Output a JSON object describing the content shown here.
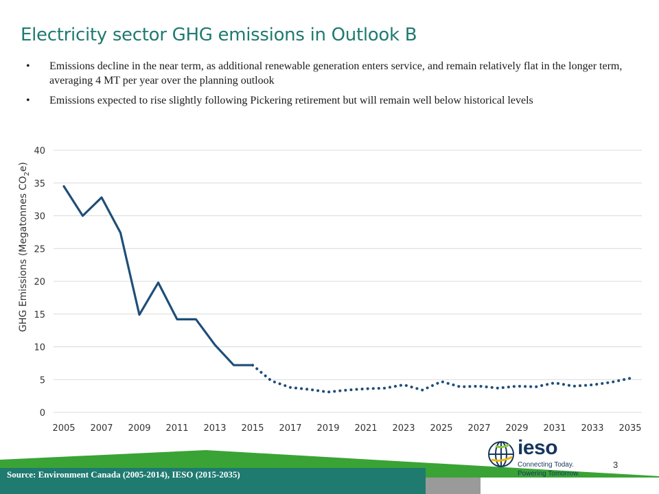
{
  "slide": {
    "title": "Electricity sector GHG emissions in Outlook B",
    "bullets": [
      "Emissions decline in the near term, as additional renewable generation enters service, and remain relatively flat in the longer term, averaging 4 MT per year over the planning outlook",
      "Emissions expected to rise slightly following Pickering retirement but will remain well below historical levels"
    ],
    "source": "Source: Environment Canada (2005-2014), IESO (2015-2035)",
    "page_number": "3"
  },
  "logo": {
    "wordmark": "ieso",
    "tagline_1": "Connecting Today.",
    "tagline_2": "Powering Tomorrow."
  },
  "colors": {
    "title": "#1f7a70",
    "series": "#1f4e79",
    "grid": "#d9d9d9",
    "footer_green": "#3aa335",
    "footer_teal": "#1f7a70",
    "logo_navy": "#16365e"
  },
  "chart_data": {
    "type": "line",
    "title": "",
    "xlabel": "",
    "ylabel": "GHG Emissions (Megatonnes CO2e)",
    "ylim": [
      0,
      40
    ],
    "yticks": [
      0,
      5,
      10,
      15,
      20,
      25,
      30,
      35,
      40
    ],
    "xlim": [
      2005,
      2035
    ],
    "xticks": [
      2005,
      2007,
      2009,
      2011,
      2013,
      2015,
      2017,
      2019,
      2021,
      2023,
      2025,
      2027,
      2029,
      2031,
      2033,
      2035
    ],
    "grid": true,
    "legend": "none",
    "series": [
      {
        "style": "solid",
        "x": [
          2005,
          2006,
          2007,
          2008,
          2009,
          2010,
          2011,
          2012,
          2013,
          2014,
          2015
        ],
        "y": [
          34.5,
          30.0,
          32.8,
          27.4,
          14.9,
          19.8,
          14.2,
          14.2,
          10.3,
          7.2,
          7.2
        ]
      },
      {
        "style": "dotted",
        "x": [
          2015,
          2016,
          2017,
          2018,
          2019,
          2020,
          2021,
          2022,
          2023,
          2024,
          2025,
          2026,
          2027,
          2028,
          2029,
          2030,
          2031,
          2032,
          2033,
          2034,
          2035
        ],
        "y": [
          7.2,
          4.8,
          3.8,
          3.5,
          3.1,
          3.4,
          3.6,
          3.7,
          4.2,
          3.4,
          4.7,
          3.9,
          4.0,
          3.7,
          4.0,
          3.9,
          4.5,
          4.0,
          4.2,
          4.6,
          5.2
        ]
      }
    ]
  }
}
